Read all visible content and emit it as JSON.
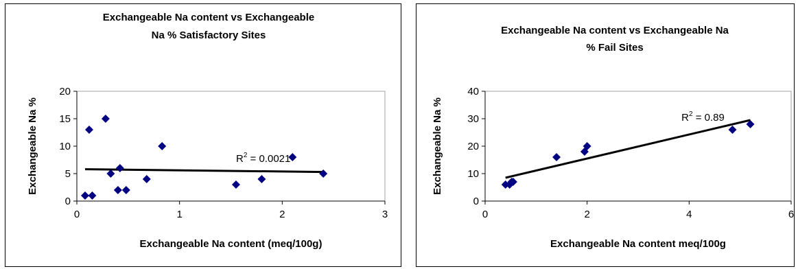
{
  "chart_data": [
    {
      "type": "scatter",
      "title_lines": [
        "Exchangeable Na content vs Exchangeable",
        "Na % Satisfactory Sites"
      ],
      "xlabel": "Exchangeable Na content (meq/100g)",
      "ylabel": "Exchangeable Na %",
      "xlim": [
        0,
        3
      ],
      "ylim": [
        0,
        20
      ],
      "xticks": [
        "0",
        "1",
        "2",
        "3"
      ],
      "yticks": [
        "0",
        "5",
        "10",
        "15",
        "20"
      ],
      "grid": false,
      "marker_color": "#000080",
      "trend_color": "#000000",
      "series": [
        {
          "x": [
            0.08,
            0.12,
            0.15,
            0.28,
            0.33,
            0.4,
            0.42,
            0.48,
            0.68,
            0.83,
            1.55,
            1.8,
            2.1,
            2.4
          ],
          "y": [
            1,
            13,
            1,
            15,
            5,
            2,
            6,
            2,
            4,
            10,
            3,
            4,
            8,
            5
          ]
        }
      ],
      "trendline": {
        "x": [
          0.08,
          2.4
        ],
        "y": [
          5.8,
          5.3
        ]
      },
      "r2_label": "R",
      "r2_sup": "2",
      "r2_value": " = 0.0021",
      "r2_at": {
        "x": 1.55,
        "y": 7.1
      }
    },
    {
      "type": "scatter",
      "title_lines": [
        "Exchangeable Na content vs Exchangeable Na",
        "% Fail Sites"
      ],
      "xlabel": "Exchangeable Na content meq/100g",
      "ylabel": "Exchangeable Na %",
      "xlim": [
        0,
        6
      ],
      "ylim": [
        0,
        40
      ],
      "xticks": [
        "0",
        "2",
        "4",
        "6"
      ],
      "yticks": [
        "0",
        "10",
        "20",
        "30",
        "40"
      ],
      "grid": false,
      "marker_color": "#000080",
      "trend_color": "#000000",
      "series": [
        {
          "x": [
            0.4,
            0.48,
            0.52,
            0.55,
            1.4,
            1.95,
            2.0,
            4.85,
            5.2
          ],
          "y": [
            6,
            6,
            7,
            7,
            16,
            18,
            20,
            26,
            28
          ]
        }
      ],
      "trendline": {
        "x": [
          0.4,
          5.2
        ],
        "y": [
          8.5,
          29.5
        ]
      },
      "r2_label": "R",
      "r2_sup": "2",
      "r2_value": " = 0.89",
      "r2_at": {
        "x": 3.85,
        "y": 29.3
      }
    }
  ]
}
